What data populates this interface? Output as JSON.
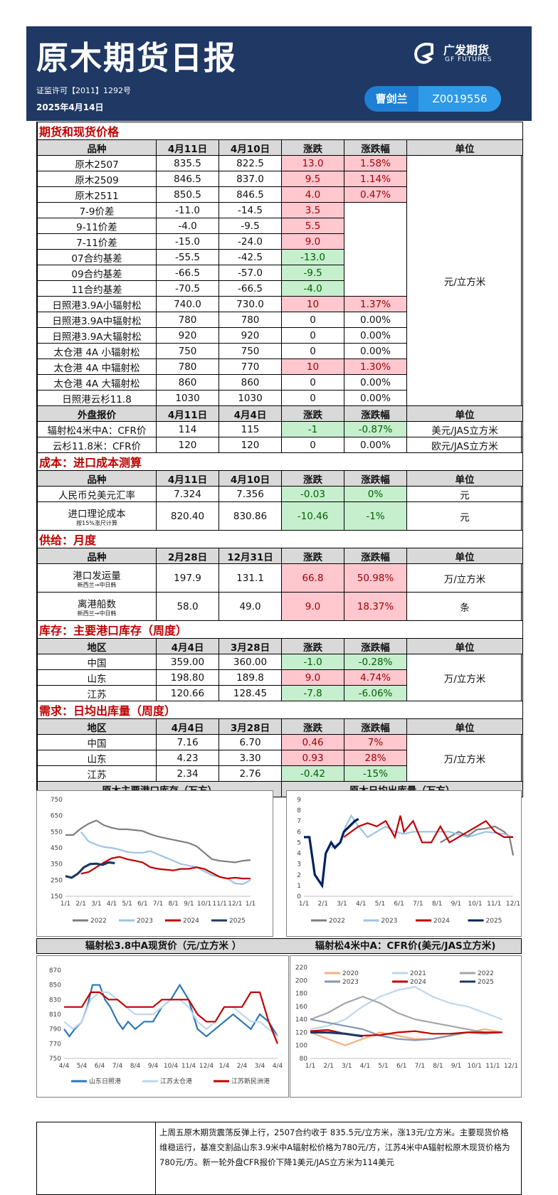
{
  "header": {
    "title": "原木期货日报",
    "license": "证监许可【2011】1292号",
    "date": "2025年4月14日",
    "logo_cn": "广发期货",
    "logo_en": "GF FUTURES",
    "author": "曹剑兰",
    "author_id": "Z0019556"
  },
  "futures": {
    "section": "期货和现货价格",
    "headers": [
      "品种",
      "4月11日",
      "4月10日",
      "涨跌",
      "涨跌幅",
      "单位"
    ],
    "unit": "元/立方米",
    "rows": [
      {
        "name": "原木2507",
        "a": "835.5",
        "b": "822.5",
        "chg": "13.0",
        "pct": "1.58%"
      },
      {
        "name": "原木2509",
        "a": "846.5",
        "b": "837.0",
        "chg": "9.5",
        "pct": "1.14%"
      },
      {
        "name": "原木2511",
        "a": "850.5",
        "b": "846.5",
        "chg": "4.0",
        "pct": "0.47%"
      },
      {
        "name": "7-9价差",
        "a": "-11.0",
        "b": "-14.5",
        "chg": "3.5",
        "pct": ""
      },
      {
        "name": "9-11价差",
        "a": "-4.0",
        "b": "-9.5",
        "chg": "5.5",
        "pct": ""
      },
      {
        "name": "7-11价差",
        "a": "-15.0",
        "b": "-24.0",
        "chg": "9.0",
        "pct": ""
      },
      {
        "name": "07合约基差",
        "a": "-55.5",
        "b": "-42.5",
        "chg": "-13.0",
        "pct": ""
      },
      {
        "name": "09合约基差",
        "a": "-66.5",
        "b": "-57.0",
        "chg": "-9.5",
        "pct": ""
      },
      {
        "name": "11合约基差",
        "a": "-70.5",
        "b": "-66.5",
        "chg": "-4.0",
        "pct": ""
      },
      {
        "name": "日照港3.9A小辐射松",
        "a": "740.0",
        "b": "730.0",
        "chg": "10",
        "pct": "1.37%"
      },
      {
        "name": "日照港3.9A中辐射松",
        "a": "780",
        "b": "780",
        "chg": "0",
        "pct": "0.00%"
      },
      {
        "name": "日照港3.9A大辐射松",
        "a": "920",
        "b": "920",
        "chg": "0",
        "pct": "0.00%"
      },
      {
        "name": "太仓港 4A 小辐射松",
        "a": "750",
        "b": "750",
        "chg": "0",
        "pct": "0.00%"
      },
      {
        "name": "太仓港 4A 中辐射松",
        "a": "780",
        "b": "770",
        "chg": "10",
        "pct": "1.30%"
      },
      {
        "name": "太仓港 4A 大辐射松",
        "a": "860",
        "b": "860",
        "chg": "0",
        "pct": "0.00%"
      },
      {
        "name": "日照港云杉11.8",
        "a": "1030",
        "b": "1030",
        "chg": "0",
        "pct": "0.00%"
      }
    ]
  },
  "external": {
    "headers": [
      "外盘报价",
      "4月11日",
      "4月4日",
      "涨跌",
      "涨跌幅",
      "单位"
    ],
    "rows": [
      {
        "name": "辐射松4米中A：CFR价",
        "a": "114",
        "b": "115",
        "chg": "-1",
        "pct": "-0.87%",
        "unit": "美元/JAS立方米"
      },
      {
        "name": "云杉11.8米：CFR价",
        "a": "120",
        "b": "120",
        "chg": "0",
        "pct": "0.00%",
        "unit": "欧元/JAS立方米"
      }
    ]
  },
  "cost": {
    "section": "成本：进口成本测算",
    "headers": [
      "品种",
      "4月11日",
      "4月10日",
      "涨跌",
      "涨跌幅",
      "单位"
    ],
    "rows": [
      {
        "name": "人民币兑美元汇率",
        "sub": "",
        "a": "7.324",
        "b": "7.356",
        "chg": "-0.03",
        "pct": "0%",
        "unit": "元"
      },
      {
        "name": "进口理论成本",
        "sub": "按15%涨尺计算",
        "a": "820.40",
        "b": "830.86",
        "chg": "-10.46",
        "pct": "-1%",
        "unit": "元"
      }
    ]
  },
  "supply": {
    "section": "供给：月度",
    "headers": [
      "品种",
      "2月28日",
      "12月31日",
      "涨跌",
      "涨跌幅",
      "单位"
    ],
    "rows": [
      {
        "name": "港口发运量",
        "sub": "新西兰→中日韩",
        "a": "197.9",
        "b": "131.1",
        "chg": "66.8",
        "pct": "50.98%",
        "unit": "万/立方米"
      },
      {
        "name": "离港船数",
        "sub": "新西兰→中日韩",
        "a": "58.0",
        "b": "49.0",
        "chg": "9.0",
        "pct": "18.37%",
        "unit": "条"
      }
    ]
  },
  "inventory": {
    "section": "库存：主要港口库存（周度）",
    "headers": [
      "地区",
      "4月4日",
      "3月28日",
      "涨跌",
      "涨跌幅",
      "单位"
    ],
    "unit": "万/立方米",
    "rows": [
      {
        "name": "中国",
        "a": "359.00",
        "b": "360.00",
        "chg": "-1.0",
        "pct": "-0.28%"
      },
      {
        "name": "山东",
        "a": "198.80",
        "b": "189.8",
        "chg": "9.0",
        "pct": "4.74%"
      },
      {
        "name": "江苏",
        "a": "120.66",
        "b": "128.45",
        "chg": "-7.8",
        "pct": "-6.06%"
      }
    ]
  },
  "demand": {
    "section": "需求：日均出库量（周度）",
    "headers": [
      "地区",
      "4月4日",
      "3月28日",
      "涨跌",
      "涨跌幅",
      "单位"
    ],
    "unit": "万/立方米",
    "rows": [
      {
        "name": "中国",
        "a": "7.16",
        "b": "6.70",
        "chg": "0.46",
        "pct": "7%"
      },
      {
        "name": "山东",
        "a": "4.23",
        "b": "3.30",
        "chg": "0.93",
        "pct": "28%"
      },
      {
        "name": "江苏",
        "a": "2.34",
        "b": "2.76",
        "chg": "-0.42",
        "pct": "-15%"
      }
    ]
  },
  "chart_titles": {
    "inventory": "原木主要港口库存（万方）",
    "outbound": "原木日均出库量（万方）",
    "spot": "辐射松3.8中A现货价（元/立方米 ）",
    "cfr": "辐射松4米中A：CFR价(美元/JAS立方米)"
  },
  "chart_data": [
    {
      "type": "line",
      "id": "inventory",
      "ylim": [
        150,
        750
      ],
      "yticks": [
        150,
        250,
        350,
        450,
        550,
        650,
        750
      ],
      "xticks": [
        "1/1",
        "2/1",
        "3/1",
        "4/1",
        "5/1",
        "6/1",
        "7/1",
        "8/1",
        "9/1",
        "10/1",
        "11/1",
        "12/1",
        "1/1"
      ],
      "xmax": 12,
      "legend_position": "bottom",
      "series": [
        {
          "name": "2022",
          "color": "#7f7f7f",
          "x": [
            0,
            0.5,
            1,
            1.5,
            2,
            2.5,
            3,
            3.5,
            4,
            5,
            5.5,
            6,
            6.5,
            7,
            7.5,
            8,
            8.5,
            9,
            9.5,
            10,
            10.5,
            11,
            11.5,
            12
          ],
          "y": [
            530,
            530,
            570,
            600,
            620,
            590,
            575,
            565,
            565,
            555,
            535,
            520,
            510,
            500,
            490,
            480,
            460,
            420,
            380,
            370,
            365,
            360,
            370,
            375
          ]
        },
        {
          "name": "2023",
          "color": "#9dc3e6",
          "x": [
            1,
            1.5,
            2,
            2.5,
            3,
            3.5,
            4,
            4.5,
            5,
            5.5,
            6,
            6.5,
            7,
            7.5,
            8,
            8.5,
            9,
            9.5,
            10,
            10.5,
            11,
            11.5,
            12
          ],
          "y": [
            550,
            490,
            470,
            455,
            450,
            440,
            425,
            420,
            420,
            430,
            410,
            390,
            370,
            350,
            340,
            330,
            305,
            280,
            270,
            260,
            230,
            225,
            250
          ]
        },
        {
          "name": "2024",
          "color": "#c00000",
          "x": [
            1,
            1.5,
            2,
            2.5,
            3,
            3.5,
            4,
            4.5,
            5,
            5.5,
            6,
            6.5,
            7,
            7.5,
            8,
            8.5,
            9,
            9.5,
            10,
            10.5,
            11,
            11.5,
            12
          ],
          "y": [
            290,
            300,
            330,
            360,
            385,
            395,
            380,
            370,
            360,
            330,
            320,
            315,
            310,
            320,
            320,
            330,
            320,
            295,
            270,
            260,
            265,
            260,
            260
          ]
        },
        {
          "name": "2025",
          "color": "#1f3864",
          "x": [
            0,
            0.4,
            0.8,
            1.2,
            1.6,
            2,
            2.4,
            2.8,
            3.2
          ],
          "y": [
            275,
            265,
            290,
            330,
            350,
            352,
            345,
            360,
            355
          ]
        }
      ]
    },
    {
      "type": "line",
      "id": "outbound",
      "ylim": [
        0,
        9
      ],
      "yticks": [
        0,
        1,
        2,
        3,
        4,
        5,
        6,
        7,
        8,
        9
      ],
      "xticks": [
        "1/1",
        "2/1",
        "3/1",
        "4/1",
        "5/1",
        "6/1",
        "7/1",
        "8/1",
        "9/1",
        "10/1",
        "11/1",
        "12/1"
      ],
      "xmax": 11.5,
      "legend_position": "bottom",
      "series": [
        {
          "name": "2022",
          "color": "#7f7f7f",
          "x": [
            7.5,
            8,
            8.5,
            9,
            9.5,
            10,
            10.5,
            11,
            11.3,
            11.5
          ],
          "y": [
            5.0,
            5.5,
            6.0,
            5.6,
            6.2,
            6.3,
            6.5,
            6.0,
            5.5,
            3.8
          ]
        },
        {
          "name": "2023",
          "color": "#9dc3e6",
          "x": [
            1.5,
            2,
            2.3,
            2.6,
            3,
            3.5,
            4,
            4.5,
            5,
            5.5,
            6,
            7,
            8,
            9,
            10,
            11,
            11.5
          ],
          "y": [
            4.5,
            5.0,
            6.5,
            7.5,
            6.5,
            5.5,
            6.0,
            6.5,
            6.0,
            5.8,
            6.0,
            6.0,
            6.0,
            5.5,
            6.0,
            5.8,
            5.5
          ]
        },
        {
          "name": "2024",
          "color": "#c00000",
          "x": [
            2.2,
            2.6,
            3,
            3.5,
            4,
            4.5,
            5,
            5.3,
            5.5,
            6,
            6.5,
            7,
            7.5,
            8,
            8.5,
            9,
            9.5,
            10,
            10.5,
            11,
            11.5
          ],
          "y": [
            5.5,
            6.0,
            6.5,
            6.8,
            6.5,
            7.0,
            5.5,
            7.5,
            6.0,
            7.0,
            5.0,
            5.0,
            6.5,
            5.0,
            5.5,
            6.0,
            6.5,
            7.0,
            6.0,
            5.5,
            5.5
          ]
        },
        {
          "name": "2025",
          "color": "#002060",
          "x": [
            0,
            0.3,
            0.6,
            1,
            1.2,
            1.5,
            1.7,
            2,
            2.2,
            2.5,
            2.8,
            3
          ],
          "y": [
            5.5,
            5.5,
            2.0,
            1.0,
            4.0,
            5.0,
            4.5,
            5.0,
            6.0,
            6.5,
            7.0,
            7.2
          ]
        }
      ]
    },
    {
      "type": "line",
      "id": "spot",
      "ylim": [
        750,
        870
      ],
      "yticks": [
        750,
        770,
        790,
        810,
        830,
        850,
        870
      ],
      "xticks": [
        "4/4",
        "5/4",
        "6/4",
        "7/4",
        "8/4",
        "9/4",
        "10/4",
        "11/4",
        "12/4",
        "1/4",
        "2/4",
        "3/4",
        "4/4"
      ],
      "xmax": 12,
      "legend_position": "bottom",
      "series": [
        {
          "name": "山东日照港",
          "color": "#2e75b6",
          "x": [
            0,
            0.3,
            0.6,
            1,
            1.3,
            1.6,
            2,
            2.3,
            2.6,
            3,
            3.3,
            3.6,
            4,
            4.5,
            5,
            5.5,
            6,
            6.5,
            7,
            7.5,
            8,
            8.5,
            9,
            9.5,
            10,
            10.5,
            11,
            11.5,
            12
          ],
          "y": [
            790,
            780,
            790,
            800,
            820,
            850,
            850,
            830,
            820,
            800,
            790,
            800,
            790,
            800,
            800,
            820,
            830,
            850,
            830,
            790,
            780,
            790,
            800,
            810,
            800,
            790,
            810,
            800,
            780
          ]
        },
        {
          "name": "江苏太仓港",
          "color": "#bdd7ee",
          "x": [
            0,
            0.5,
            1,
            1.5,
            2,
            2.5,
            3,
            3.5,
            4,
            4.5,
            5,
            5.5,
            6,
            6.5,
            7,
            7.5,
            8,
            8.5,
            9,
            9.5,
            10,
            10.5,
            11,
            11.5,
            12
          ],
          "y": [
            800,
            790,
            800,
            830,
            840,
            840,
            830,
            820,
            810,
            810,
            810,
            820,
            830,
            830,
            820,
            800,
            790,
            800,
            820,
            820,
            810,
            800,
            800,
            790,
            780
          ]
        },
        {
          "name": "江苏新民洲港",
          "color": "#c00000",
          "x": [
            0,
            0.5,
            1,
            1.5,
            2,
            2.5,
            3,
            3.5,
            4,
            4.5,
            5,
            5.5,
            6,
            6.5,
            7,
            7.5,
            8,
            8.5,
            9,
            9.5,
            10,
            10.5,
            11,
            11.5,
            12
          ],
          "y": [
            820,
            820,
            820,
            840,
            840,
            830,
            830,
            820,
            820,
            820,
            820,
            830,
            830,
            830,
            830,
            810,
            800,
            800,
            820,
            820,
            820,
            840,
            840,
            800,
            770
          ]
        }
      ]
    },
    {
      "type": "line",
      "id": "cfr",
      "ylim": [
        80,
        220
      ],
      "yticks": [
        80,
        100,
        120,
        140,
        160,
        180,
        200,
        220
      ],
      "xticks": [
        "1/1",
        "2/1",
        "3/1",
        "4/1",
        "5/1",
        "6/1",
        "7/1",
        "8/1",
        "9/1",
        "10/1",
        "11/1",
        "12/1"
      ],
      "xmax": 11.5,
      "legend_position": "top",
      "series": [
        {
          "name": "2020",
          "color": "#f4b183",
          "x": [
            0,
            1,
            2,
            3,
            4,
            5,
            6,
            7,
            8,
            9,
            10,
            11
          ],
          "y": [
            120,
            110,
            100,
            110,
            120,
            115,
            110,
            110,
            115,
            120,
            125,
            120
          ]
        },
        {
          "name": "2021",
          "color": "#bdd7ee",
          "x": [
            0,
            1,
            2,
            3,
            4,
            5,
            6,
            7,
            8,
            9,
            10,
            11
          ],
          "y": [
            125,
            130,
            140,
            160,
            175,
            185,
            190,
            175,
            165,
            160,
            150,
            140
          ]
        },
        {
          "name": "2022",
          "color": "#a6a6a6",
          "x": [
            0,
            1,
            2,
            3,
            4,
            5,
            6,
            7,
            8,
            9,
            10,
            11
          ],
          "y": [
            140,
            150,
            165,
            175,
            165,
            150,
            140,
            135,
            130,
            125,
            120,
            120
          ]
        },
        {
          "name": "2023",
          "color": "#8497b0",
          "x": [
            0,
            1,
            2,
            3,
            4,
            5,
            6,
            7,
            8,
            9,
            10,
            11
          ],
          "y": [
            140,
            135,
            130,
            125,
            115,
            110,
            108,
            110,
            115,
            120,
            118,
            120
          ]
        },
        {
          "name": "2024",
          "color": "#c00000",
          "x": [
            0,
            1,
            2,
            3,
            4,
            5,
            6,
            7,
            8,
            9,
            10,
            11
          ],
          "y": [
            122,
            124,
            118,
            115,
            116,
            120,
            122,
            118,
            118,
            120,
            120,
            120
          ]
        },
        {
          "name": "2025",
          "color": "#1f3864",
          "x": [
            0,
            1,
            2,
            3
          ],
          "y": [
            120,
            120,
            118,
            114
          ]
        }
      ]
    }
  ],
  "summary": {
    "text": "上周五原木期货震荡反弹上行，2507合约收于 835.5元/立方米，涨13元/立方米。主要现货价格维稳运行，基准交割品山东3.9米中A辐射松价格为780元/方，江苏4米中A辐射松原木现货价格为780元/方。新一轮外盘CFR报价下降1美元/JAS立方米为114美元"
  }
}
